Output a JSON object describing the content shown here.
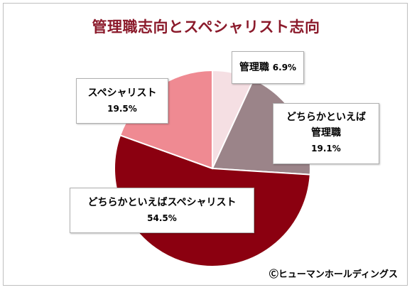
{
  "chart_data": {
    "type": "pie",
    "title": "管理職志向とスペシャリスト志向",
    "slices": [
      {
        "name": "管理職",
        "value": 6.9,
        "label": "6.9%",
        "color": "#f5dfe3"
      },
      {
        "name": "どちらかといえば管理職",
        "value": 19.1,
        "label": "19.1%",
        "color": "#9b8489"
      },
      {
        "name": "どちらかといえばスペシャリスト",
        "value": 54.5,
        "label": "54.5%",
        "color": "#8b0010"
      },
      {
        "name": "スペシャリスト",
        "value": 19.5,
        "label": "19.5%",
        "color": "#ef8a92"
      }
    ],
    "start": "12 o'clock",
    "direction": "clockwise"
  },
  "labels": {
    "kanrishoku": {
      "line1": "管理職",
      "pct": "6.9%"
    },
    "dochira_kanri": {
      "line1": "どちらかといえば",
      "line2": "管理職",
      "pct": "19.1%"
    },
    "dochira_spec": {
      "line1": "どちらかといえばスペシャリスト",
      "pct": "54.5%"
    },
    "spec": {
      "line1": "スペシャリスト",
      "pct": "19.5%"
    }
  },
  "copyright": "Ⓒヒューマンホールディングス"
}
